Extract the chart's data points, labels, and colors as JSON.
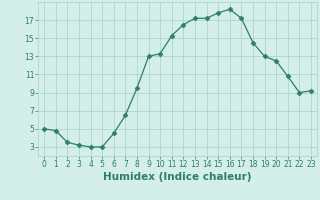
{
  "x": [
    0,
    1,
    2,
    3,
    4,
    5,
    6,
    7,
    8,
    9,
    10,
    11,
    12,
    13,
    14,
    15,
    16,
    17,
    18,
    19,
    20,
    21,
    22,
    23
  ],
  "y": [
    5,
    4.8,
    3.5,
    3.2,
    3.0,
    3.0,
    4.5,
    6.5,
    9.5,
    13.0,
    13.3,
    15.3,
    16.5,
    17.2,
    17.2,
    17.8,
    18.2,
    17.2,
    14.5,
    13.0,
    12.5,
    10.8,
    9.0,
    9.2
  ],
  "xlabel": "Humidex (Indice chaleur)",
  "xlim": [
    -0.5,
    23.5
  ],
  "ylim": [
    2,
    19
  ],
  "yticks": [
    3,
    5,
    7,
    9,
    11,
    13,
    15,
    17
  ],
  "xticks": [
    0,
    1,
    2,
    3,
    4,
    5,
    6,
    7,
    8,
    9,
    10,
    11,
    12,
    13,
    14,
    15,
    16,
    17,
    18,
    19,
    20,
    21,
    22,
    23
  ],
  "line_color": "#2e7d6e",
  "marker": "D",
  "marker_size": 2.5,
  "bg_color": "#d4eeea",
  "grid_color": "#aed4ce",
  "tick_color": "#2e7d6e",
  "label_color": "#2e7d6e",
  "tick_fontsize": 5.5,
  "xlabel_fontsize": 7.5
}
